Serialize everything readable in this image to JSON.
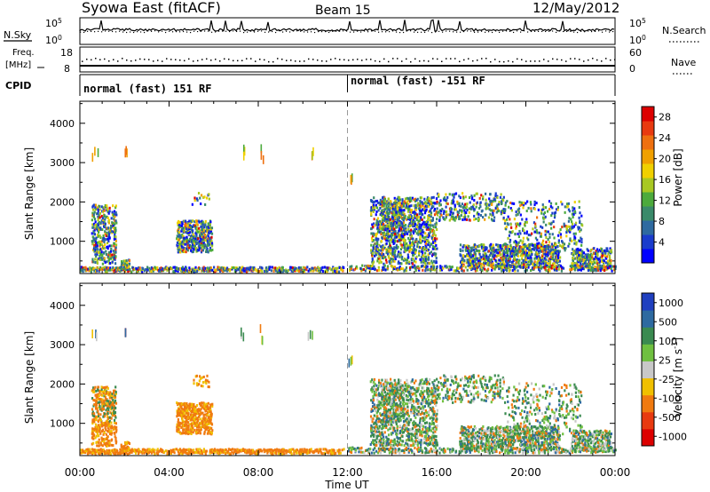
{
  "header": {
    "station": "Syowa East (fitACF)",
    "beam": "Beam 15",
    "date": "12/May/2012"
  },
  "strip_labels": {
    "nsky": "N.Sky",
    "nsearch": "N.Search",
    "freq_line1": "Freq.",
    "freq_line2": "[MHz]",
    "nave": "Nave",
    "cpid": "CPID"
  },
  "strip_ticks": {
    "noise_hi": "10^5",
    "noise_lo": "10^0",
    "noise_hi_r": "10^5",
    "noise_lo_r": "10^0",
    "freq_hi": "18",
    "freq_lo": "8",
    "nave_hi": "60",
    "nave_lo": "0"
  },
  "cpid": {
    "segment_1": "normal (fast) 151 RF",
    "segment_2": "normal (fast) -151 RF",
    "boundary_hour": 12
  },
  "chart_data": [
    {
      "type": "heatmap",
      "name": "power",
      "ylabel": "Slant Range [km]",
      "xlabel": "Time UT",
      "x_range_hours": [
        0,
        24
      ],
      "ylim": [
        180,
        4560
      ],
      "y_ticks": [
        1000,
        2000,
        3000,
        4000
      ],
      "x_tick_labels": [
        "00:00",
        "04:00",
        "08:00",
        "12:00",
        "16:00",
        "20:00",
        "00:00"
      ],
      "colorbar_label": "Power [dB]",
      "colorbar_ticks": [
        "4",
        "8",
        "12",
        "16",
        "20",
        "24",
        "28"
      ],
      "colorbar_colors": [
        "#0000ff",
        "#1a3ccc",
        "#2e6aa0",
        "#3a8a6a",
        "#4caa3c",
        "#a8c822",
        "#f0d000",
        "#f0a000",
        "#ee7010",
        "#e83a10",
        "#dc0000"
      ]
    },
    {
      "type": "heatmap",
      "name": "velocity",
      "ylabel": "Slant Range [km]",
      "xlabel": "Time UT",
      "x_range_hours": [
        0,
        24
      ],
      "ylim": [
        180,
        4560
      ],
      "y_ticks": [
        1000,
        2000,
        3000,
        4000
      ],
      "x_tick_labels": [
        "00:00",
        "04:00",
        "08:00",
        "12:00",
        "16:00",
        "20:00",
        "00:00"
      ],
      "colorbar_label": "Velocity [m s^-1]",
      "colorbar_ticks": [
        "1000",
        "500",
        "100",
        "25",
        "-25",
        "-100",
        "-500",
        "-1000"
      ],
      "colorbar_colors": [
        "#1f3fbf",
        "#2e6aa0",
        "#3a8a50",
        "#6fc040",
        "#c8c8c8",
        "#f0c000",
        "#f07a10",
        "#e83a10",
        "#dc0000"
      ]
    }
  ]
}
